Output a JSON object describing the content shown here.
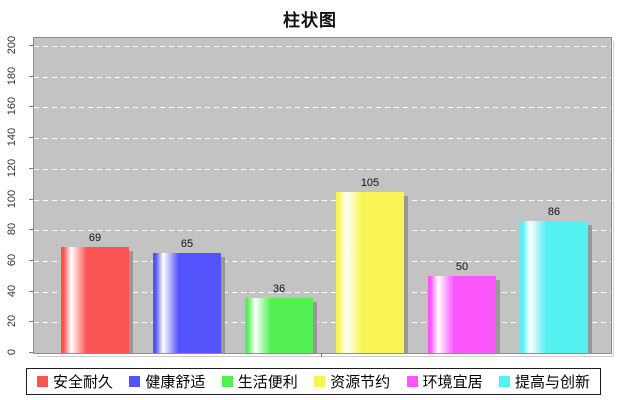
{
  "chart_data": {
    "type": "bar",
    "title": "柱状图",
    "categories": [
      "安全耐久",
      "健康舒适",
      "生活便利",
      "资源节约",
      "环境宜居",
      "提高与创新"
    ],
    "values": [
      69,
      65,
      36,
      105,
      50,
      86
    ],
    "series": [
      {
        "label": "安全耐久",
        "value": 69,
        "color": "#fc5353"
      },
      {
        "label": "健康舒适",
        "value": 65,
        "color": "#5353fc"
      },
      {
        "label": "生活便利",
        "value": 36,
        "color": "#53f053"
      },
      {
        "label": "资源节约",
        "value": 105,
        "color": "#f8f455"
      },
      {
        "label": "环境宜居",
        "value": 50,
        "color": "#fa55fa"
      },
      {
        "label": "提高与创新",
        "value": 86,
        "color": "#55f0f0"
      }
    ],
    "xlabel": "",
    "ylabel": "",
    "ylim": [
      0,
      200
    ],
    "yticks": [
      0,
      20,
      40,
      60,
      80,
      100,
      120,
      140,
      160,
      180,
      200
    ],
    "grid": true,
    "gridline_style": "dashed-white",
    "plot_background": "#c3c3c3",
    "legend_position": "bottom"
  }
}
